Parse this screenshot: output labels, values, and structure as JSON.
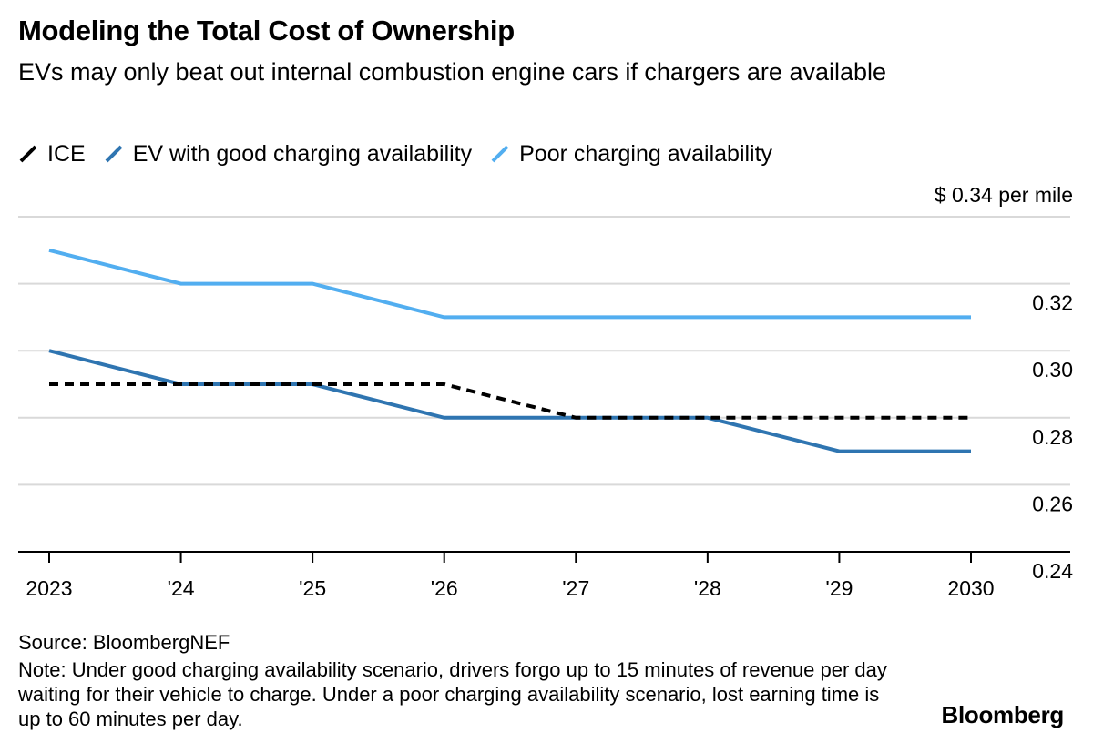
{
  "header": {
    "title": "Modeling the Total Cost of Ownership",
    "subtitle": "EVs may only beat out internal combustion engine cars if chargers are available"
  },
  "legend": [
    {
      "label": "ICE",
      "color": "#000000",
      "style": "dashed"
    },
    {
      "label": "EV with good charging availability",
      "color": "#2f75b1",
      "style": "solid"
    },
    {
      "label": "Poor charging availability",
      "color": "#52aef0",
      "style": "solid"
    }
  ],
  "chart_data": {
    "type": "line",
    "title": "Modeling the Total Cost of Ownership",
    "unit_label": "$ 0.34 per mile",
    "categories": [
      "2023",
      "'24",
      "'25",
      "'26",
      "'27",
      "'28",
      "'29",
      "2030"
    ],
    "ylim": [
      0.24,
      0.34
    ],
    "yticks": [
      "0.24",
      "0.26",
      "0.28",
      "0.30",
      "0.32"
    ],
    "grid": true,
    "series": [
      {
        "name": "ICE",
        "color": "#000000",
        "dashed": true,
        "values": [
          0.29,
          0.29,
          0.29,
          0.29,
          0.28,
          0.28,
          0.28,
          0.28
        ]
      },
      {
        "name": "EV with good charging availability",
        "color": "#2f75b1",
        "dashed": false,
        "values": [
          0.3,
          0.29,
          0.29,
          0.28,
          0.28,
          0.28,
          0.27,
          0.27
        ]
      },
      {
        "name": "Poor charging availability",
        "color": "#52aef0",
        "dashed": false,
        "values": [
          0.33,
          0.32,
          0.32,
          0.31,
          0.31,
          0.31,
          0.31,
          0.31
        ]
      }
    ]
  },
  "footer": {
    "source": "Source: BloombergNEF",
    "note": "Note: Under good charging availability scenario, drivers forgo up to 15 minutes of revenue per day waiting for their vehicle to charge. Under a poor charging availability scenario, lost earning time is up to 60 minutes per day.",
    "brand": "Bloomberg"
  }
}
